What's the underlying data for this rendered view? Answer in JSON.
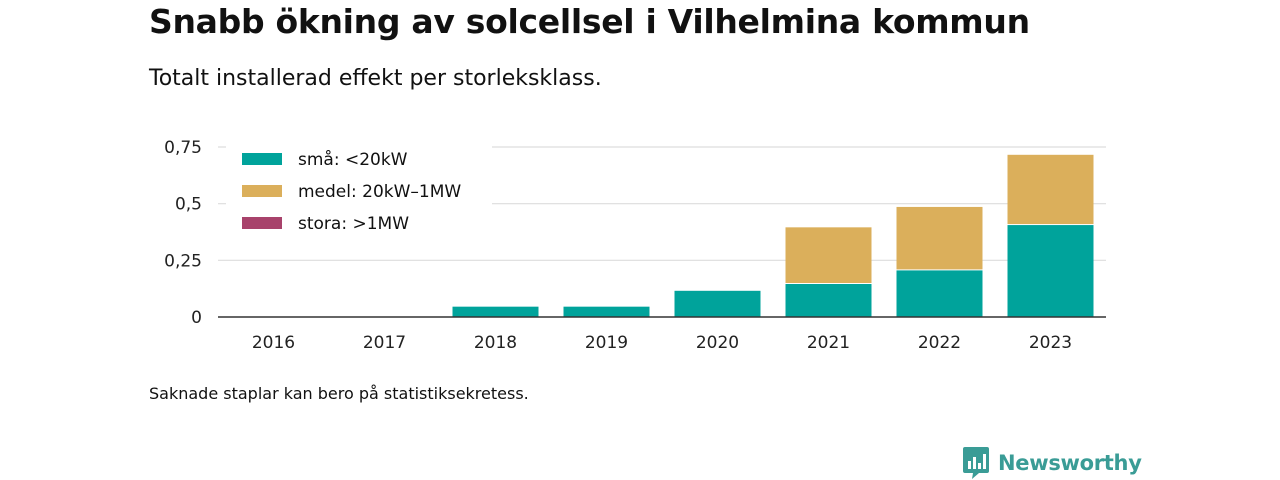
{
  "title": "Snabb ökning av solcellsel i Vilhelmina kommun",
  "subtitle": "Totalt installerad effekt per storleksklass.",
  "footnote": "Saknade staplar kan bero på statistiksekretess.",
  "brand": {
    "name": "Newsworthy",
    "logo_icon": "bar-chart-logo-icon",
    "color": "#3a9c96"
  },
  "chart_data": {
    "type": "bar",
    "stacked": true,
    "categories": [
      "2016",
      "2017",
      "2018",
      "2019",
      "2020",
      "2021",
      "2022",
      "2023"
    ],
    "series": [
      {
        "name": "små: <20kW",
        "color": "#00a39b",
        "values": [
          0,
          0,
          0.05,
          0.05,
          0.12,
          0.15,
          0.21,
          0.41
        ]
      },
      {
        "name": "medel: 20kW–1MW",
        "color": "#dbaf5b",
        "values": [
          0,
          0,
          0,
          0,
          0,
          0.25,
          0.28,
          0.31
        ]
      },
      {
        "name": "stora: >1MW",
        "color": "#a8426b",
        "values": [
          0,
          0,
          0,
          0,
          0,
          0,
          0,
          0
        ]
      }
    ],
    "yticks": [
      0,
      0.25,
      0.5,
      0.75
    ],
    "ytick_labels": [
      "0",
      "0,25",
      "0,5",
      "0,75"
    ],
    "ylim": [
      0,
      0.75
    ],
    "grid": true,
    "legend_position": "top-left",
    "xlabel": "",
    "ylabel": ""
  }
}
